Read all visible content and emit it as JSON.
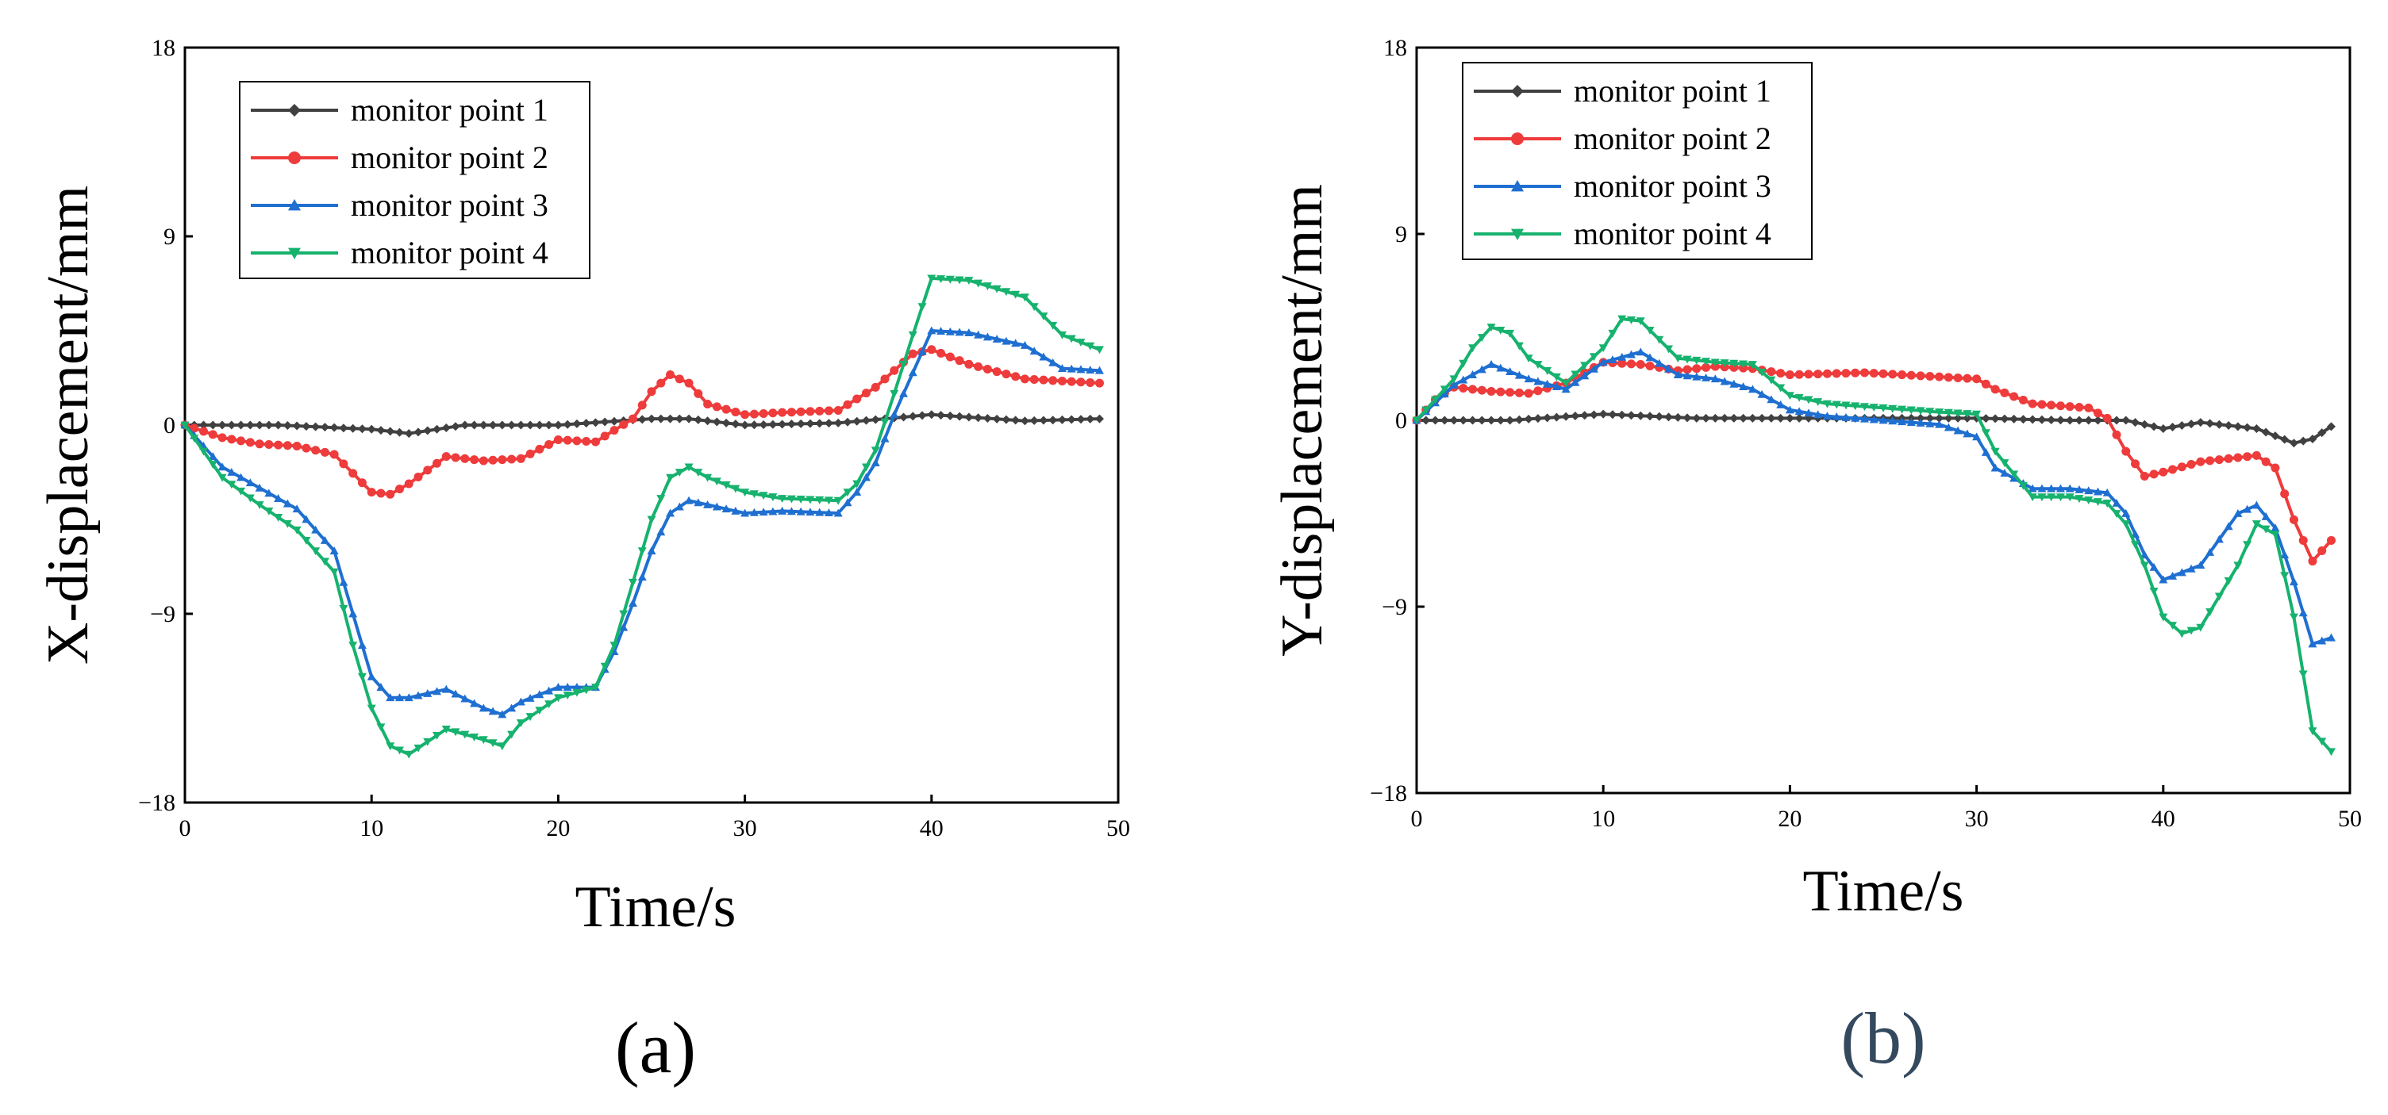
{
  "chart_data": [
    {
      "type": "line",
      "panel_label": "(a)",
      "xlabel": "Time/s",
      "ylabel": "X-displacement/mm",
      "xlim": [
        0,
        50
      ],
      "ylim": [
        -18,
        18
      ],
      "xticks": [
        0,
        10,
        20,
        30,
        40,
        50
      ],
      "yticks": [
        -18,
        -9,
        0,
        9,
        18
      ],
      "legend_position": "top-left",
      "series": [
        {
          "name": "monitor point 1",
          "color": "#404040",
          "marker": "diamond",
          "x": [
            0,
            5,
            10,
            12,
            15,
            20,
            25,
            27,
            30,
            35,
            40,
            45,
            49
          ],
          "y": [
            0,
            0,
            -0.2,
            -0.4,
            0,
            0,
            0.3,
            0.3,
            0,
            0.1,
            0.5,
            0.2,
            0.3
          ]
        },
        {
          "name": "monitor point 2",
          "color": "#ee3b3b",
          "marker": "circle",
          "x": [
            0,
            2,
            4,
            6,
            8,
            10,
            11,
            12,
            14,
            16,
            18,
            20,
            22,
            24,
            25,
            26,
            27,
            28,
            30,
            32,
            35,
            37,
            39,
            40,
            42,
            45,
            49
          ],
          "y": [
            0,
            -0.6,
            -0.9,
            -1.0,
            -1.4,
            -3.2,
            -3.3,
            -2.8,
            -1.5,
            -1.7,
            -1.6,
            -0.7,
            -0.8,
            0.3,
            1.6,
            2.4,
            2.0,
            1.0,
            0.5,
            0.6,
            0.7,
            1.8,
            3.4,
            3.6,
            2.9,
            2.2,
            2.0
          ]
        },
        {
          "name": "monitor point 3",
          "color": "#1f6fd1",
          "marker": "triangle-up",
          "x": [
            0,
            2,
            4,
            6,
            8,
            9,
            10,
            11,
            12,
            14,
            16,
            17,
            18,
            20,
            22,
            23,
            24,
            25,
            26,
            27,
            28,
            30,
            32,
            35,
            36,
            37,
            38,
            39,
            40,
            42,
            45,
            47,
            49
          ],
          "y": [
            0,
            -2,
            -3,
            -4,
            -6,
            -9,
            -12,
            -13,
            -13,
            -12.6,
            -13.5,
            -13.8,
            -13.2,
            -12.5,
            -12.5,
            -10.8,
            -8.5,
            -6,
            -4.2,
            -3.6,
            -3.8,
            -4.2,
            -4.1,
            -4.2,
            -3.2,
            -1.8,
            0.5,
            2.5,
            4.5,
            4.4,
            3.8,
            2.7,
            2.6
          ]
        },
        {
          "name": "monitor point 4",
          "color": "#16b26e",
          "marker": "triangle-down",
          "x": [
            0,
            2,
            4,
            6,
            8,
            9,
            10,
            11,
            12,
            14,
            16,
            17,
            18,
            20,
            22,
            23,
            24,
            25,
            26,
            27,
            28,
            30,
            32,
            35,
            36,
            37,
            38,
            39,
            40,
            42,
            45,
            47,
            49
          ],
          "y": [
            0,
            -2.5,
            -3.8,
            -5,
            -7,
            -10.5,
            -13.5,
            -15.3,
            -15.7,
            -14.5,
            -15,
            -15.3,
            -14.2,
            -13,
            -12.5,
            -10.5,
            -7.5,
            -4.5,
            -2.5,
            -2.0,
            -2.5,
            -3.2,
            -3.5,
            -3.6,
            -2.8,
            -1.2,
            1.5,
            4.3,
            7.0,
            6.9,
            6.1,
            4.3,
            3.6
          ]
        }
      ]
    },
    {
      "type": "line",
      "panel_label": "(b)",
      "xlabel": "Time/s",
      "ylabel": "Y-displacement/mm",
      "xlim": [
        0,
        50
      ],
      "ylim": [
        -18,
        18
      ],
      "xticks": [
        0,
        10,
        20,
        30,
        40,
        50
      ],
      "yticks": [
        -18,
        -9,
        0,
        9,
        18
      ],
      "legend_position": "top-left",
      "series": [
        {
          "name": "monitor point 1",
          "color": "#404040",
          "marker": "diamond",
          "x": [
            0,
            5,
            10,
            15,
            20,
            25,
            30,
            35,
            38,
            40,
            42,
            45,
            47,
            48,
            49
          ],
          "y": [
            0,
            0,
            0.3,
            0.1,
            0.1,
            0.1,
            0.1,
            0,
            0,
            -0.4,
            -0.1,
            -0.4,
            -1.1,
            -0.9,
            -0.3
          ]
        },
        {
          "name": "monitor point 2",
          "color": "#ee3b3b",
          "marker": "circle",
          "x": [
            0,
            1,
            2,
            4,
            6,
            8,
            10,
            12,
            14,
            16,
            18,
            20,
            24,
            30,
            31,
            33,
            36,
            37,
            38,
            39,
            40,
            42,
            45,
            46,
            47,
            48,
            49
          ],
          "y": [
            0,
            1.0,
            1.6,
            1.4,
            1.3,
            1.8,
            2.8,
            2.7,
            2.4,
            2.6,
            2.5,
            2.2,
            2.3,
            2.0,
            1.5,
            0.8,
            0.6,
            0.1,
            -1.5,
            -2.7,
            -2.5,
            -2.0,
            -1.7,
            -2.3,
            -4.8,
            -6.8,
            -5.8
          ]
        },
        {
          "name": "monitor point 3",
          "color": "#1f6fd1",
          "marker": "triangle-up",
          "x": [
            0,
            2,
            4,
            6,
            8,
            10,
            12,
            14,
            16,
            18,
            20,
            22,
            25,
            28,
            30,
            31,
            33,
            35,
            37,
            38,
            39,
            40,
            42,
            44,
            45,
            46,
            47,
            48,
            49
          ],
          "y": [
            0,
            1.7,
            2.7,
            2.0,
            1.5,
            2.8,
            3.3,
            2.2,
            2.0,
            1.5,
            0.5,
            0.2,
            0,
            -0.2,
            -0.8,
            -2.3,
            -3.3,
            -3.3,
            -3.5,
            -4.5,
            -6.5,
            -7.7,
            -7.0,
            -4.5,
            -4.1,
            -5.2,
            -7.8,
            -10.8,
            -10.5
          ]
        },
        {
          "name": "monitor point 4",
          "color": "#16b26e",
          "marker": "triangle-down",
          "x": [
            0,
            2,
            3,
            4,
            5,
            6,
            8,
            10,
            11,
            12,
            14,
            16,
            18,
            20,
            22,
            25,
            28,
            30,
            31,
            33,
            35,
            37,
            38,
            39,
            40,
            41,
            42,
            44,
            45,
            46,
            47,
            48,
            49
          ],
          "y": [
            0,
            2.0,
            3.5,
            4.5,
            4.2,
            3.0,
            1.8,
            3.5,
            4.9,
            4.8,
            3.0,
            2.8,
            2.7,
            1.2,
            0.8,
            0.6,
            0.4,
            0.3,
            -1.5,
            -3.7,
            -3.7,
            -4.0,
            -5.0,
            -7.0,
            -9.5,
            -10.3,
            -10.0,
            -7.0,
            -5.0,
            -5.5,
            -9.5,
            -15.0,
            -16.0
          ]
        }
      ]
    }
  ]
}
